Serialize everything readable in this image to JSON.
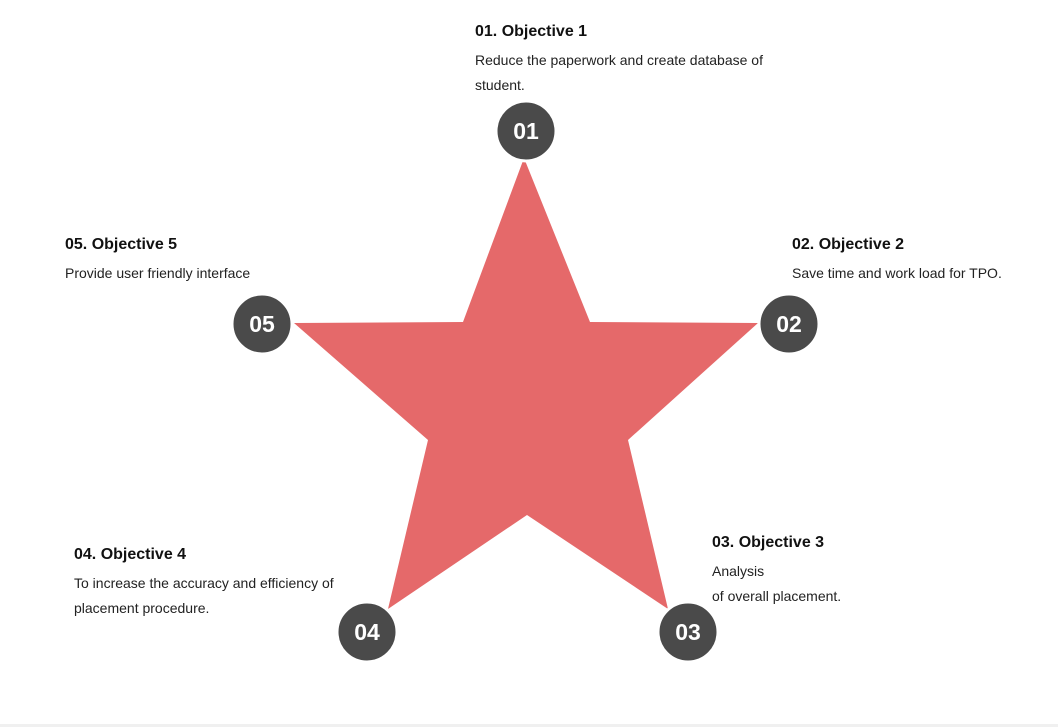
{
  "colors": {
    "star": "#E5696A",
    "badge": "#4A4A4A",
    "badge_text": "#FFFFFF",
    "badge_ring": "#FFFFFF"
  },
  "objectives": [
    {
      "number": "01",
      "title": "01. Objective 1",
      "desc_lines": [
        "Reduce the paperwork and create database of",
        "student."
      ]
    },
    {
      "number": "02",
      "title": "02. Objective 2",
      "desc_lines": [
        "Save time and work load for TPO."
      ]
    },
    {
      "number": "03",
      "title": "03. Objective 3",
      "desc_lines": [
        "Analysis",
        "of overall placement."
      ]
    },
    {
      "number": "04",
      "title": "04. Objective 4",
      "desc_lines": [
        "To increase the accuracy and efficiency of",
        "placement procedure."
      ]
    },
    {
      "number": "05",
      "title": "05. Objective 5",
      "desc_lines": [
        "Provide user friendly interface"
      ]
    }
  ]
}
